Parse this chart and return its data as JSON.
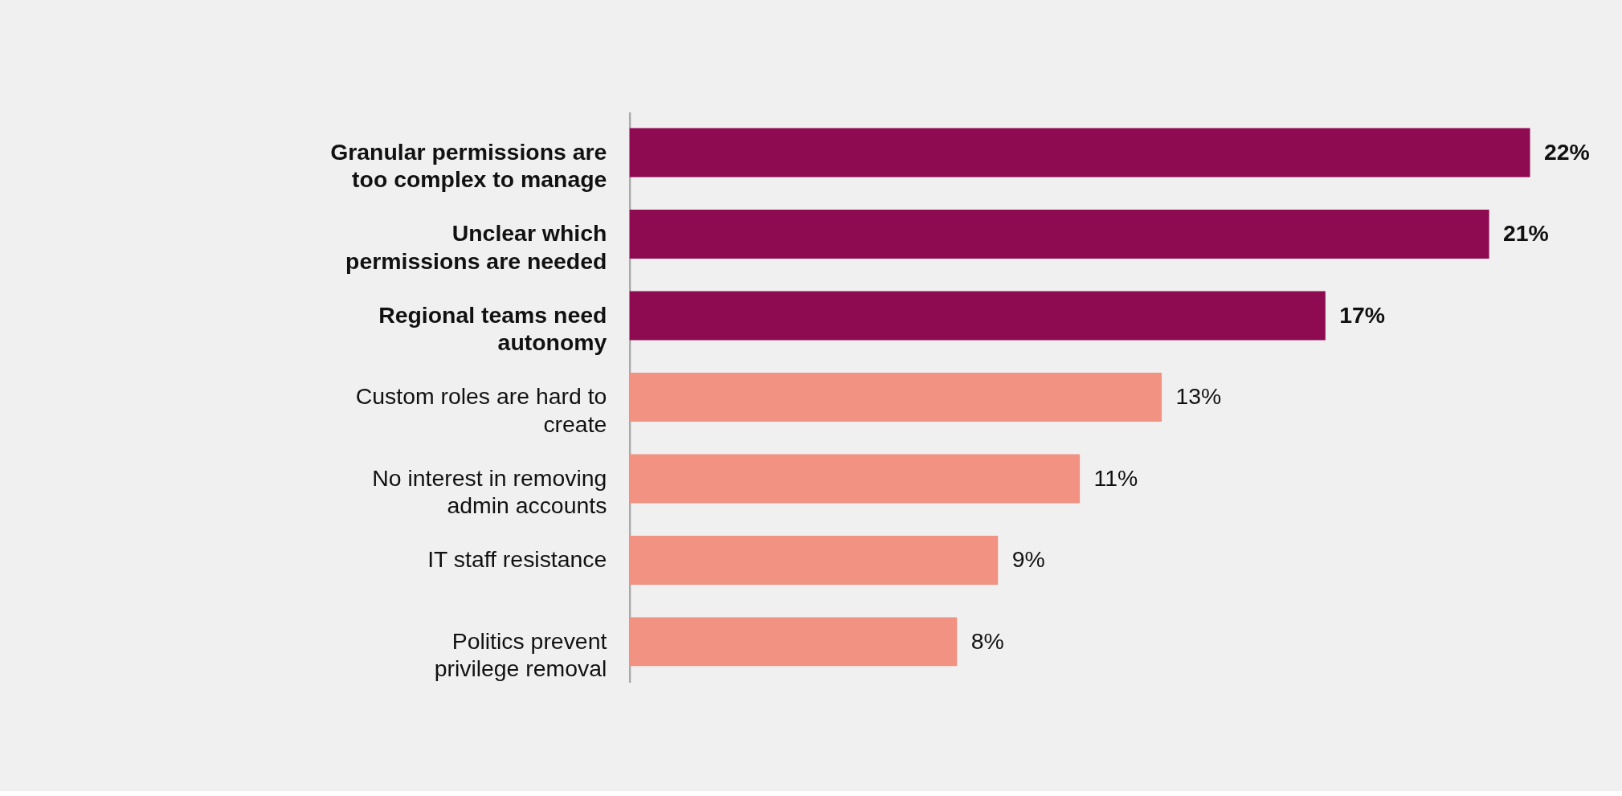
{
  "chart_data": {
    "type": "bar",
    "orientation": "horizontal",
    "categories": [
      "Granular permissions are too complex to manage",
      "Unclear which permissions are needed",
      "Regional teams need autonomy",
      "Custom roles are hard to create",
      "No interest in removing admin accounts",
      "IT staff resistance",
      "Politics prevent privilege removal"
    ],
    "values": [
      22,
      21,
      17,
      13,
      11,
      9,
      8
    ],
    "colors": [
      "#8e0b52",
      "#8e0b52",
      "#8e0b52",
      "#f29282",
      "#f29282",
      "#f29282",
      "#f29282"
    ],
    "value_labels": [
      "22%",
      "21%",
      "17%",
      "13%",
      "11%",
      "9%",
      "8%"
    ]
  }
}
